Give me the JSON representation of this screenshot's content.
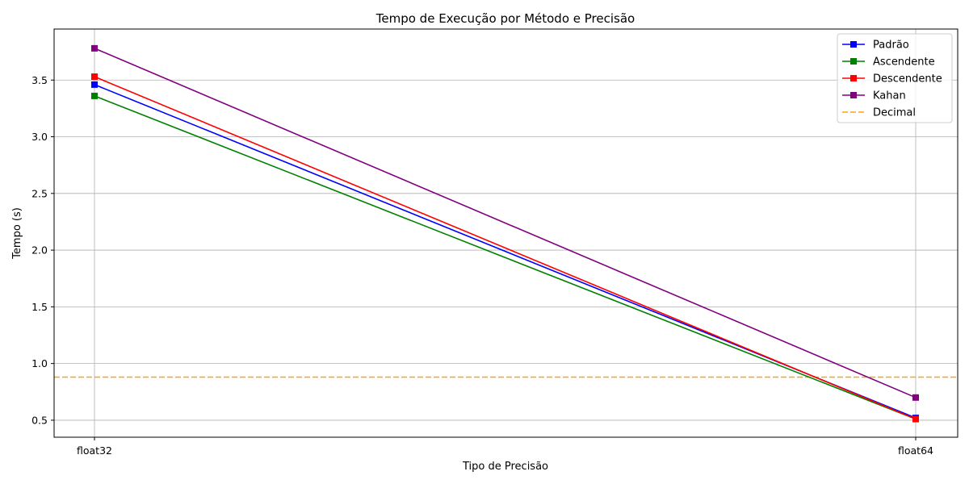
{
  "chart_data": {
    "type": "line",
    "title": "Tempo de Execução por Método e Precisão",
    "xlabel": "Tipo de Precisão",
    "ylabel": "Tempo (s)",
    "categories": [
      "float32",
      "float64"
    ],
    "ylim": [
      0.35,
      3.95
    ],
    "yticks": [
      0.5,
      1.0,
      1.5,
      2.0,
      2.5,
      3.0,
      3.5
    ],
    "ytick_labels": [
      "0.5",
      "1.0",
      "1.5",
      "2.0",
      "2.5",
      "3.0",
      "3.5"
    ],
    "grid": true,
    "legend_position": "top-right",
    "series": [
      {
        "name": "Padrão",
        "values": [
          3.46,
          0.52
        ],
        "color": "#0000ff",
        "marker": "square"
      },
      {
        "name": "Ascendente",
        "values": [
          3.36,
          0.51
        ],
        "color": "#008000",
        "marker": "square"
      },
      {
        "name": "Descendente",
        "values": [
          3.53,
          0.51
        ],
        "color": "#ff0000",
        "marker": "square"
      },
      {
        "name": "Kahan",
        "values": [
          3.78,
          0.7
        ],
        "color": "#800080",
        "marker": "square"
      }
    ],
    "reference_lines": [
      {
        "name": "Decimal",
        "value": 0.88,
        "color": "#ffa500",
        "style": "dashed"
      }
    ]
  }
}
